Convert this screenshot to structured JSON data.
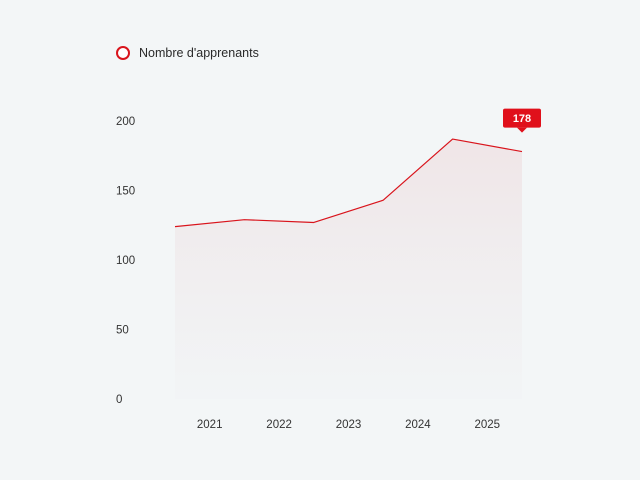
{
  "chart_data": {
    "type": "area",
    "categories": [
      "2021",
      "2022",
      "2023",
      "2024",
      "2025"
    ],
    "series": [
      {
        "name": "Nombre d'apprenants",
        "x": [
          2020.5,
          2021.5,
          2022.5,
          2023.5,
          2024.5,
          2025.5
        ],
        "values": [
          124,
          129,
          127,
          143,
          187,
          178
        ]
      }
    ],
    "yticks": [
      "0",
      "50",
      "100",
      "150",
      "200"
    ],
    "ylim": [
      0,
      200
    ],
    "xlim": [
      2020.5,
      2025.5
    ],
    "grid": false,
    "legend_position": "top-left",
    "highlight": {
      "label": "178",
      "value": 178,
      "x": 2025.5
    },
    "colors": {
      "line": "#d9141c",
      "badge": "#e0101b"
    }
  }
}
